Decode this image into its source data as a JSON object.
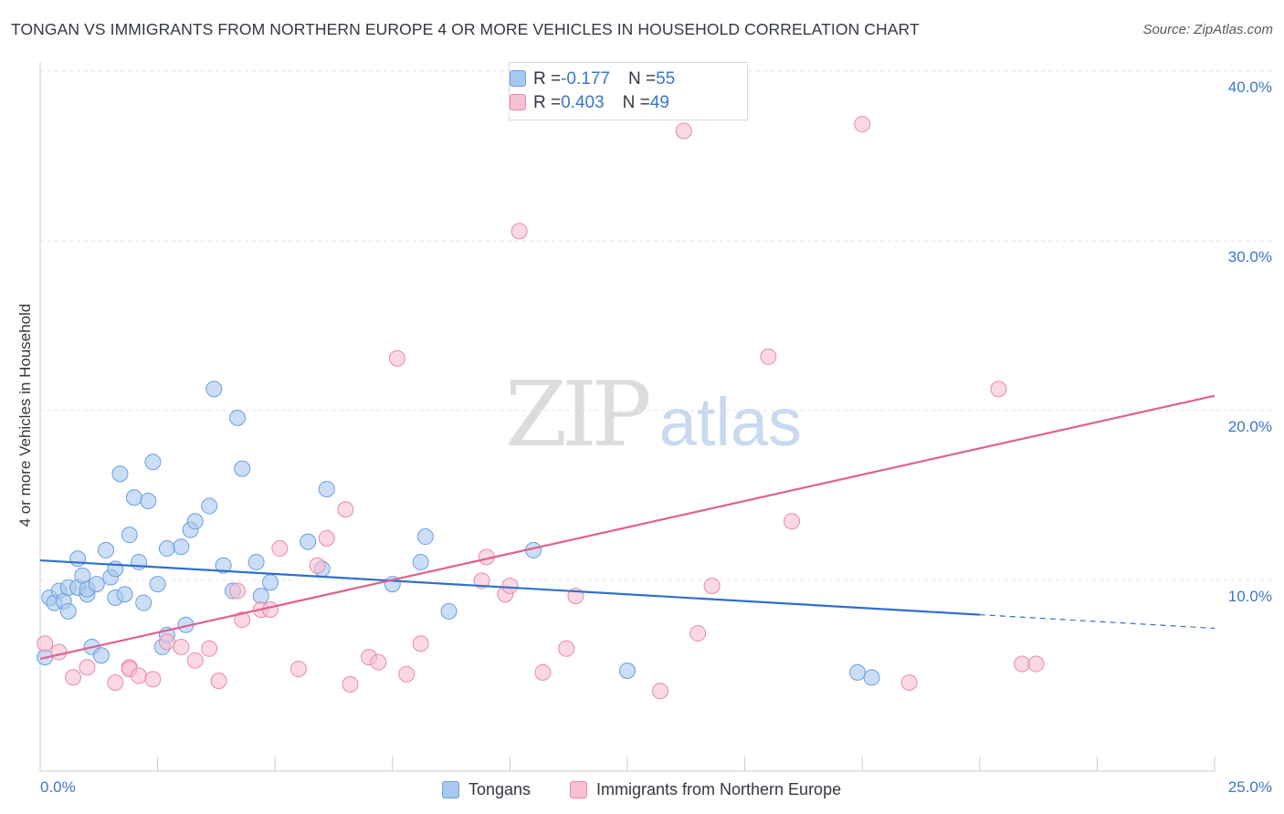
{
  "title": "TONGAN VS IMMIGRANTS FROM NORTHERN EUROPE 4 OR MORE VEHICLES IN HOUSEHOLD CORRELATION CHART",
  "source": "Source: ZipAtlas.com",
  "watermark": {
    "zip": "ZIP",
    "atlas": "atlas"
  },
  "legend_top": {
    "rows": [
      {
        "r_label": "R = ",
        "r_value": "-0.177",
        "n_label": "N = ",
        "n_value": "55",
        "color": "#a9c8ef",
        "border": "#6a9fe0"
      },
      {
        "r_label": "R = ",
        "r_value": "0.403",
        "n_label": "N = ",
        "n_value": "49",
        "color": "#f8c0d0",
        "border": "#e88aa8"
      }
    ]
  },
  "legend_bottom": {
    "items": [
      {
        "label": "Tongans",
        "color": "#a9c8ef",
        "border": "#6a9fe0"
      },
      {
        "label": "Immigrants from Northern Europe",
        "color": "#f8c0d0",
        "border": "#e88aa8"
      }
    ]
  },
  "chart_data": {
    "type": "scatter",
    "title": "TONGAN VS IMMIGRANTS FROM NORTHERN EUROPE 4 OR MORE VEHICLES IN HOUSEHOLD CORRELATION CHART",
    "xlabel": "",
    "ylabel": "4 or more Vehicles in Household",
    "xlim": [
      0,
      25
    ],
    "ylim": [
      0,
      40
    ],
    "x_tick_labels": [
      "0.0%",
      "25.0%"
    ],
    "y_ticks": [
      10,
      20,
      30,
      40
    ],
    "y_tick_labels": [
      "10.0%",
      "20.0%",
      "30.0%",
      "40.0%"
    ],
    "grid": true,
    "legend_position": "top-center",
    "series": [
      {
        "name": "Tongans",
        "color": "#6a9fe0",
        "fill": "#a9c8ef",
        "line_color": "#2f6fcc",
        "r": -0.177,
        "n": 55,
        "trend": {
          "x0": 0,
          "y0": 12.2,
          "x1": 20,
          "y1": 9.0,
          "dash_to_x": 25,
          "dash_to_y": 8.2
        },
        "points": [
          [
            0.1,
            6.5
          ],
          [
            0.2,
            10.0
          ],
          [
            0.3,
            9.7
          ],
          [
            0.4,
            10.4
          ],
          [
            0.5,
            9.8
          ],
          [
            0.6,
            10.6
          ],
          [
            0.6,
            9.2
          ],
          [
            0.8,
            10.6
          ],
          [
            0.8,
            12.3
          ],
          [
            0.9,
            11.3
          ],
          [
            1.0,
            10.2
          ],
          [
            1.0,
            10.5
          ],
          [
            1.1,
            7.1
          ],
          [
            1.2,
            10.8
          ],
          [
            1.3,
            6.6
          ],
          [
            1.4,
            12.8
          ],
          [
            1.5,
            11.2
          ],
          [
            1.6,
            11.7
          ],
          [
            1.6,
            10.0
          ],
          [
            1.7,
            17.3
          ],
          [
            1.8,
            10.2
          ],
          [
            1.9,
            13.7
          ],
          [
            2.0,
            15.9
          ],
          [
            2.1,
            12.1
          ],
          [
            2.2,
            9.7
          ],
          [
            2.3,
            15.7
          ],
          [
            2.4,
            18.0
          ],
          [
            2.5,
            10.8
          ],
          [
            2.6,
            7.1
          ],
          [
            2.7,
            7.8
          ],
          [
            2.7,
            12.9
          ],
          [
            3.0,
            13.0
          ],
          [
            3.1,
            8.4
          ],
          [
            3.2,
            14.0
          ],
          [
            3.3,
            14.5
          ],
          [
            3.6,
            15.4
          ],
          [
            3.7,
            22.3
          ],
          [
            3.9,
            11.9
          ],
          [
            4.1,
            10.4
          ],
          [
            4.2,
            20.6
          ],
          [
            4.3,
            17.6
          ],
          [
            4.6,
            12.1
          ],
          [
            4.7,
            10.1
          ],
          [
            4.9,
            10.9
          ],
          [
            5.7,
            13.3
          ],
          [
            6.0,
            11.7
          ],
          [
            6.1,
            16.4
          ],
          [
            7.5,
            10.8
          ],
          [
            8.1,
            12.1
          ],
          [
            8.2,
            13.6
          ],
          [
            8.7,
            9.2
          ],
          [
            10.5,
            12.8
          ],
          [
            12.5,
            5.7
          ],
          [
            17.4,
            5.6
          ],
          [
            17.7,
            5.3
          ]
        ]
      },
      {
        "name": "Immigrants from Northern Europe",
        "color": "#e88aa8",
        "fill": "#f8c0d0",
        "line_color": "#e0608f",
        "r": 0.403,
        "n": 49,
        "trend": {
          "x0": 0,
          "y0": 6.4,
          "x1": 25,
          "y1": 21.9
        },
        "points": [
          [
            0.1,
            7.3
          ],
          [
            0.4,
            6.8
          ],
          [
            0.7,
            5.3
          ],
          [
            1.0,
            5.9
          ],
          [
            1.6,
            5.0
          ],
          [
            1.9,
            5.9
          ],
          [
            1.9,
            5.8
          ],
          [
            2.1,
            5.4
          ],
          [
            2.4,
            5.2
          ],
          [
            2.7,
            7.4
          ],
          [
            3.0,
            7.1
          ],
          [
            3.3,
            6.3
          ],
          [
            3.6,
            7.0
          ],
          [
            3.8,
            5.1
          ],
          [
            4.2,
            10.4
          ],
          [
            4.3,
            8.7
          ],
          [
            4.7,
            9.3
          ],
          [
            4.9,
            9.3
          ],
          [
            5.1,
            12.9
          ],
          [
            5.5,
            5.8
          ],
          [
            5.9,
            11.9
          ],
          [
            6.1,
            13.5
          ],
          [
            6.5,
            15.2
          ],
          [
            6.6,
            4.9
          ],
          [
            7.0,
            6.5
          ],
          [
            7.2,
            6.2
          ],
          [
            7.6,
            24.1
          ],
          [
            7.8,
            5.5
          ],
          [
            8.1,
            7.3
          ],
          [
            9.4,
            11.0
          ],
          [
            9.5,
            12.4
          ],
          [
            9.9,
            10.2
          ],
          [
            10.0,
            10.7
          ],
          [
            10.2,
            31.6
          ],
          [
            10.7,
            5.6
          ],
          [
            11.2,
            7.0
          ],
          [
            11.4,
            10.1
          ],
          [
            12.4,
            40.0
          ],
          [
            13.2,
            4.5
          ],
          [
            13.7,
            37.5
          ],
          [
            14.0,
            7.9
          ],
          [
            14.3,
            10.7
          ],
          [
            15.5,
            24.2
          ],
          [
            16.0,
            14.5
          ],
          [
            17.5,
            37.9
          ],
          [
            18.5,
            5.0
          ],
          [
            20.4,
            22.3
          ],
          [
            20.9,
            6.1
          ],
          [
            21.2,
            6.1
          ]
        ]
      }
    ]
  }
}
